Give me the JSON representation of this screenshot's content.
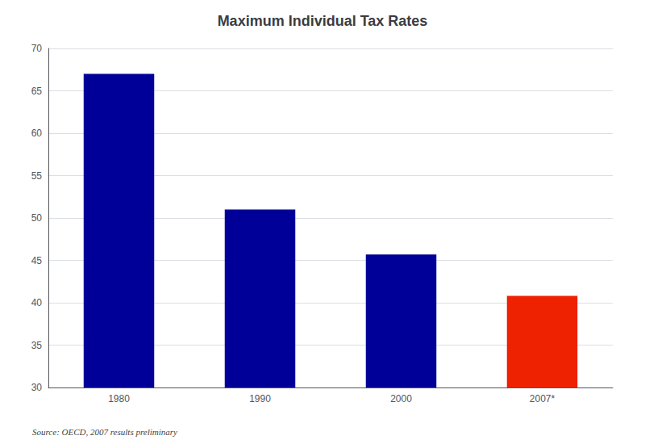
{
  "chart_data": {
    "type": "bar",
    "title": "Maximum Individual Tax Rates",
    "categories": [
      "1980",
      "1990",
      "2000",
      "2007*"
    ],
    "values": [
      67,
      51,
      45.7,
      40.8
    ],
    "colors": [
      "#000099",
      "#000099",
      "#000099",
      "#EE2200"
    ],
    "ylim": [
      30,
      70
    ],
    "yticks": [
      30,
      35,
      40,
      45,
      50,
      55,
      60,
      65,
      70
    ],
    "grid": true,
    "annotations": [
      "Source: OECD, 2007 results preliminary"
    ]
  }
}
